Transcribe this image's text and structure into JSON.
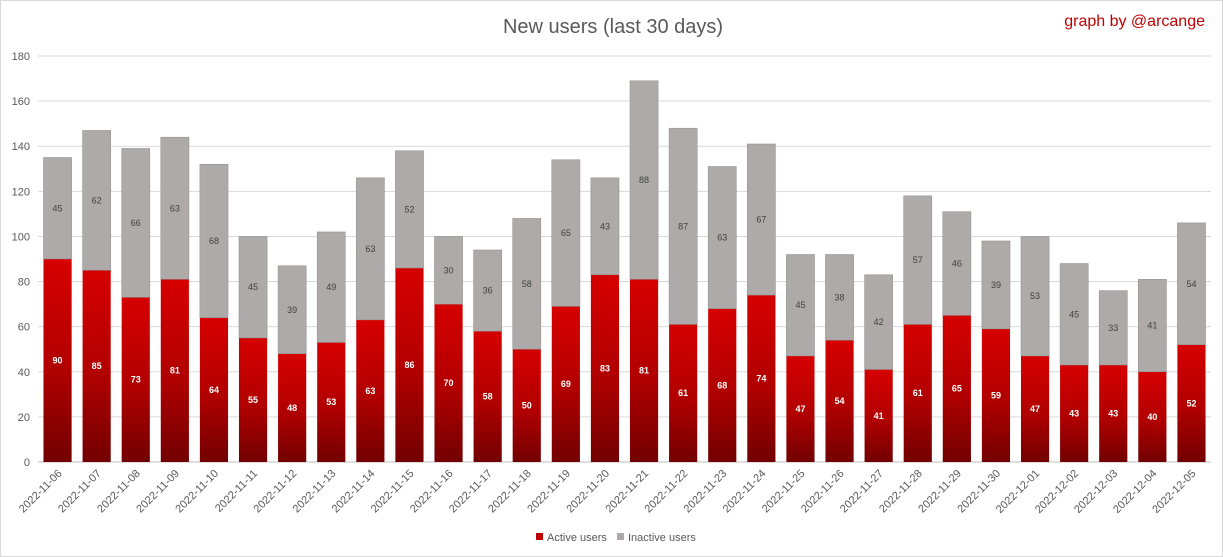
{
  "chart_data": {
    "type": "bar",
    "stacked": true,
    "title": "New users (last 30 days)",
    "credit": "graph by @arcange",
    "categories": [
      "2022-11-06",
      "2022-11-07",
      "2022-11-08",
      "2022-11-09",
      "2022-11-10",
      "2022-11-11",
      "2022-11-12",
      "2022-11-13",
      "2022-11-14",
      "2022-11-15",
      "2022-11-16",
      "2022-11-17",
      "2022-11-18",
      "2022-11-19",
      "2022-11-20",
      "2022-11-21",
      "2022-11-22",
      "2022-11-23",
      "2022-11-24",
      "2022-11-25",
      "2022-11-26",
      "2022-11-27",
      "2022-11-28",
      "2022-11-29",
      "2022-11-30",
      "2022-12-01",
      "2022-12-02",
      "2022-12-03",
      "2022-12-04",
      "2022-12-05"
    ],
    "series": [
      {
        "name": "Active users",
        "color": "#c00000",
        "values": [
          90,
          85,
          73,
          81,
          64,
          55,
          48,
          53,
          63,
          86,
          70,
          58,
          50,
          69,
          83,
          81,
          61,
          68,
          74,
          47,
          54,
          41,
          61,
          65,
          59,
          47,
          43,
          43,
          40,
          52
        ]
      },
      {
        "name": "Inactive users",
        "color": "#aeaaaa",
        "values": [
          45,
          62,
          66,
          63,
          68,
          45,
          39,
          49,
          63,
          52,
          30,
          36,
          58,
          65,
          43,
          88,
          87,
          63,
          67,
          45,
          38,
          42,
          57,
          46,
          39,
          53,
          45,
          33,
          41,
          54
        ]
      }
    ],
    "ylim": [
      0,
      180
    ],
    "yticks": [
      "0",
      "20",
      "40",
      "60",
      "80",
      "100",
      "120",
      "140",
      "160",
      "180"
    ],
    "grid": true,
    "legend": "bottom"
  }
}
